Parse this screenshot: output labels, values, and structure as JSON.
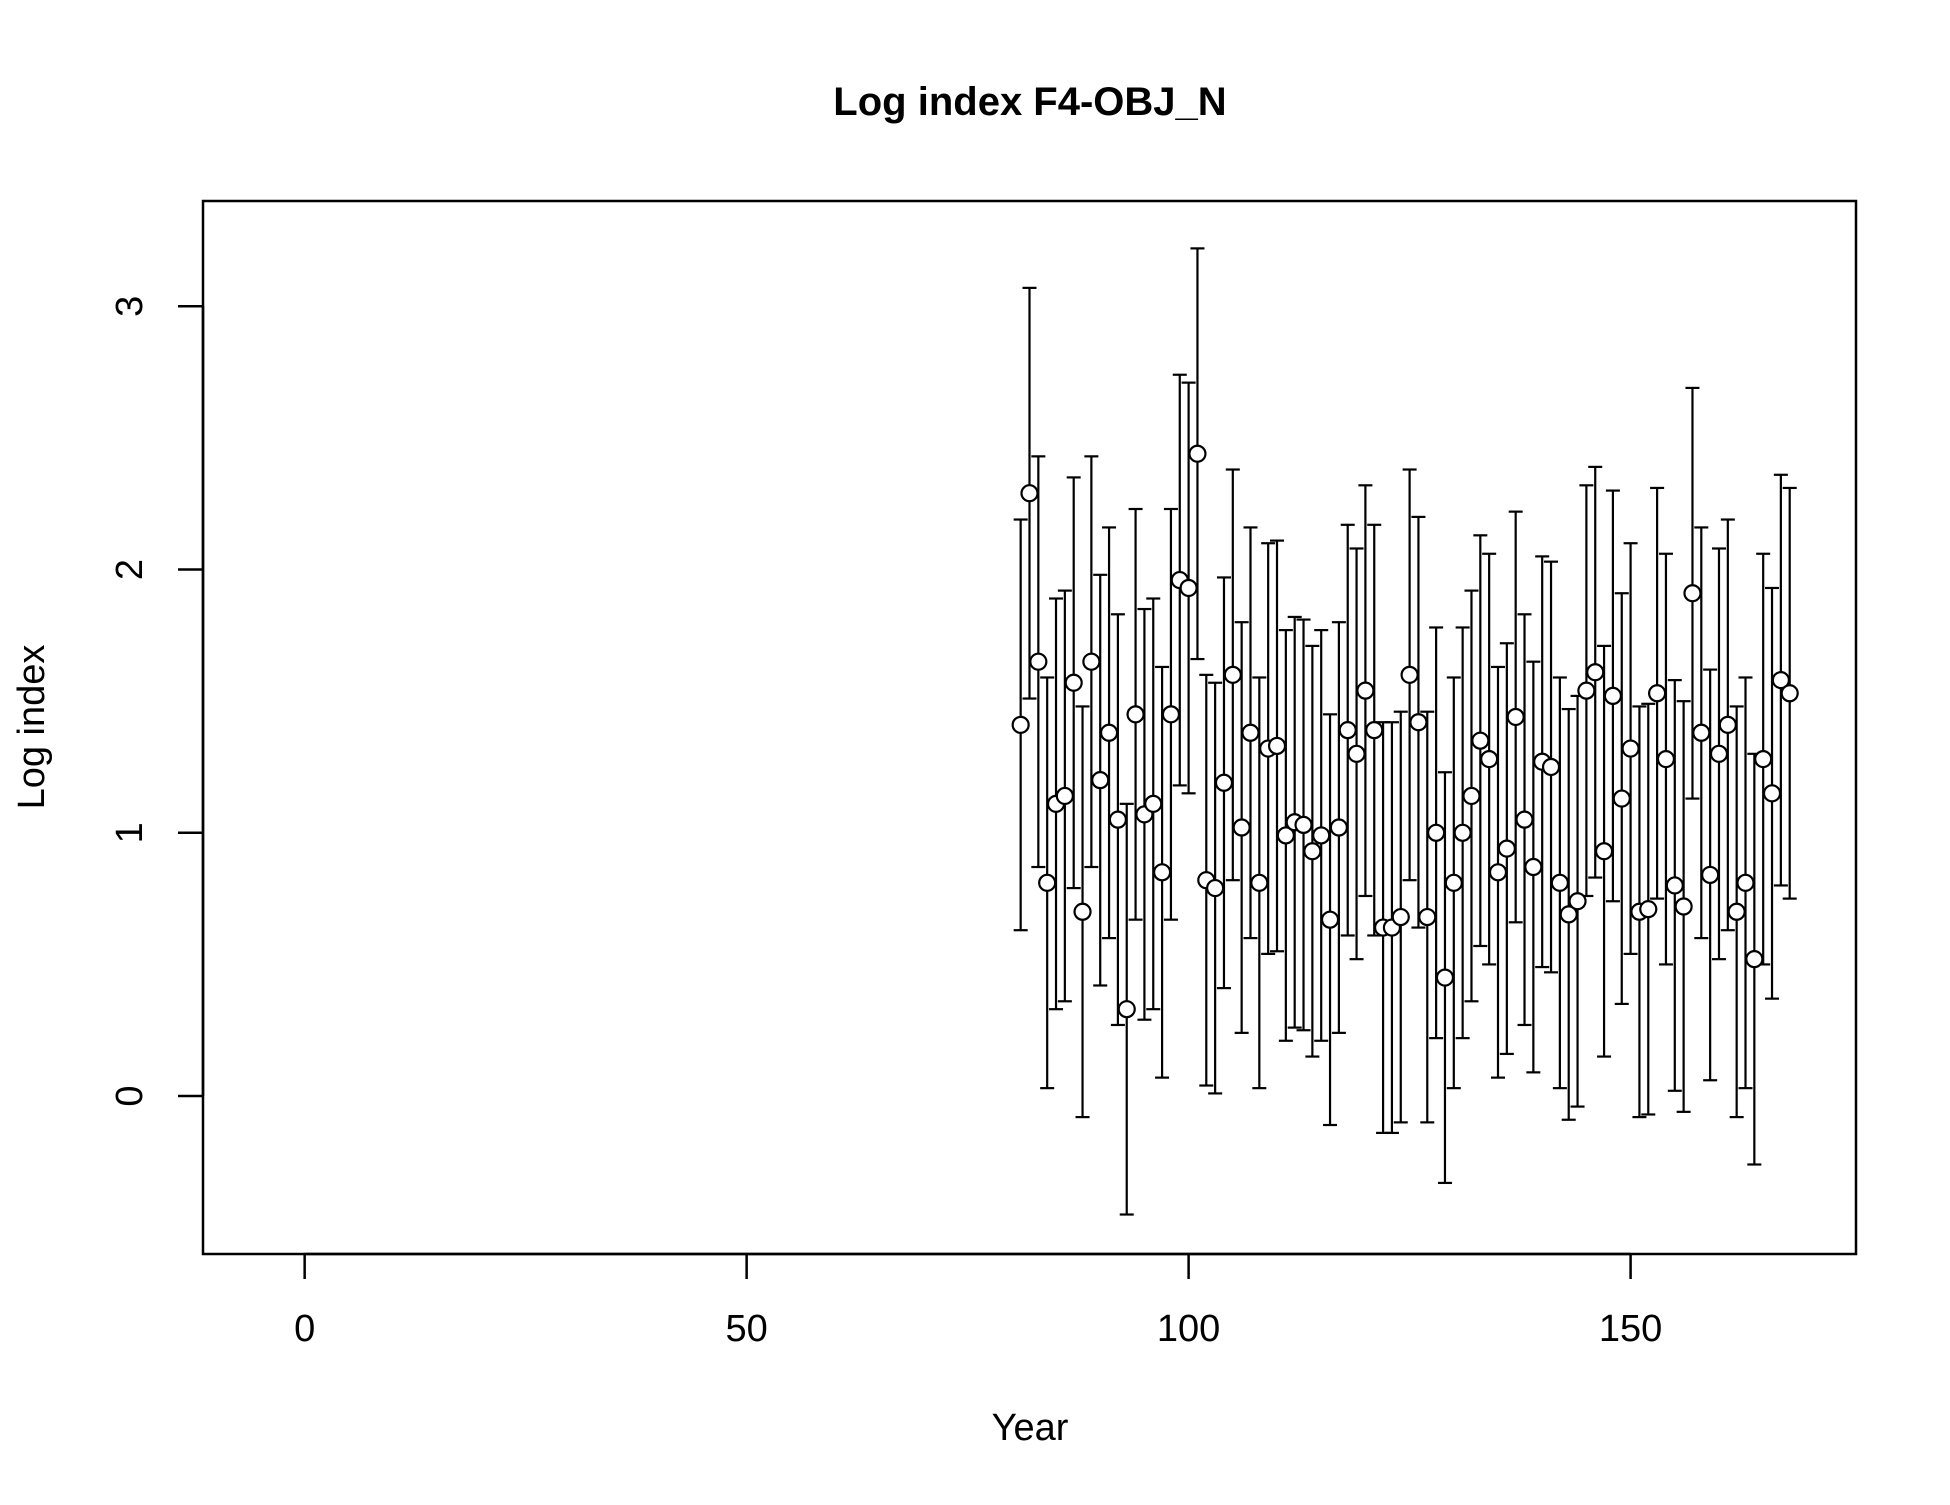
{
  "chart_data": {
    "type": "scatter",
    "title": "Log index F4-OBJ_N",
    "xlabel": "Year",
    "ylabel": "Log index",
    "xlim": [
      -11.5,
      175.5
    ],
    "ylim": [
      -0.6,
      3.4
    ],
    "xticks": [
      0,
      50,
      100,
      150
    ],
    "yticks": [
      0,
      1,
      2,
      3
    ],
    "grid": false,
    "legend": "none",
    "colors": {
      "marker_fill": "#ffffff",
      "marker_stroke": "#000000",
      "error_bar": "#000000"
    },
    "series": [
      {
        "x": [
          81,
          82,
          83,
          84,
          85,
          86,
          87,
          88,
          89,
          90,
          91,
          92,
          93,
          94,
          95,
          96,
          97,
          98,
          99,
          100,
          101,
          102,
          103,
          104,
          105,
          106,
          107,
          108,
          109,
          110,
          111,
          112,
          113,
          114,
          115,
          116,
          117,
          118,
          119,
          120,
          121,
          122,
          123,
          124,
          125,
          126,
          127,
          128,
          129,
          130,
          131,
          132,
          133,
          134,
          135,
          136,
          137,
          138,
          139,
          140,
          141,
          142,
          143,
          144,
          145,
          146,
          147,
          148,
          149,
          150,
          151,
          152,
          153,
          154,
          155,
          156,
          157,
          158,
          159,
          160,
          161,
          162,
          163,
          164,
          165,
          166,
          167,
          168
        ],
        "y": [
          1.41,
          2.29,
          1.65,
          0.81,
          1.11,
          1.14,
          1.57,
          0.7,
          1.65,
          1.2,
          1.38,
          1.05,
          0.33,
          1.45,
          1.07,
          1.11,
          0.85,
          1.45,
          1.96,
          1.93,
          2.44,
          0.82,
          0.79,
          1.19,
          1.6,
          1.02,
          1.38,
          0.81,
          1.32,
          1.33,
          0.99,
          1.04,
          1.03,
          0.93,
          0.99,
          0.67,
          1.02,
          1.39,
          1.3,
          1.54,
          1.39,
          0.64,
          0.64,
          0.68,
          1.6,
          1.42,
          0.68,
          1.0,
          0.45,
          0.81,
          1.0,
          1.14,
          1.35,
          1.28,
          0.85,
          0.94,
          1.44,
          1.05,
          0.87,
          1.27,
          1.25,
          0.81,
          0.69,
          0.74,
          1.54,
          1.61,
          0.93,
          1.52,
          1.13,
          1.32,
          0.7,
          0.71,
          1.53,
          1.28,
          0.8,
          0.72,
          1.91,
          1.38,
          0.84,
          1.3,
          1.41,
          0.7,
          0.81,
          0.52,
          1.28,
          1.15,
          1.58,
          1.53
        ],
        "lower": [
          0.63,
          1.51,
          0.87,
          0.03,
          0.33,
          0.36,
          0.79,
          -0.08,
          0.87,
          0.42,
          0.6,
          0.27,
          -0.45,
          0.67,
          0.29,
          0.33,
          0.07,
          0.67,
          1.18,
          1.15,
          1.66,
          0.04,
          0.01,
          0.41,
          0.82,
          0.24,
          0.6,
          0.03,
          0.54,
          0.55,
          0.21,
          0.26,
          0.25,
          0.15,
          0.21,
          -0.11,
          0.24,
          0.61,
          0.52,
          0.76,
          0.61,
          -0.14,
          -0.14,
          -0.1,
          0.82,
          0.64,
          -0.1,
          0.22,
          -0.33,
          0.03,
          0.22,
          0.36,
          0.57,
          0.5,
          0.07,
          0.16,
          0.66,
          0.27,
          0.09,
          0.49,
          0.47,
          0.03,
          -0.09,
          -0.04,
          0.76,
          0.83,
          0.15,
          0.74,
          0.35,
          0.54,
          -0.08,
          -0.07,
          0.75,
          0.5,
          0.02,
          -0.06,
          1.13,
          0.6,
          0.06,
          0.52,
          0.63,
          -0.08,
          0.03,
          -0.26,
          0.5,
          0.37,
          0.8,
          0.75
        ],
        "upper": [
          2.19,
          3.07,
          2.43,
          1.59,
          1.89,
          1.92,
          2.35,
          1.48,
          2.43,
          1.98,
          2.16,
          1.83,
          1.11,
          2.23,
          1.85,
          1.89,
          1.63,
          2.23,
          2.74,
          2.71,
          3.22,
          1.6,
          1.57,
          1.97,
          2.38,
          1.8,
          2.16,
          1.59,
          2.1,
          2.11,
          1.77,
          1.82,
          1.81,
          1.71,
          1.77,
          1.45,
          1.8,
          2.17,
          2.08,
          2.32,
          2.17,
          1.42,
          1.42,
          1.46,
          2.38,
          2.2,
          1.46,
          1.78,
          1.23,
          1.59,
          1.78,
          1.92,
          2.13,
          2.06,
          1.63,
          1.72,
          2.22,
          1.83,
          1.65,
          2.05,
          2.03,
          1.59,
          1.47,
          1.52,
          2.32,
          2.39,
          1.71,
          2.3,
          1.91,
          2.1,
          1.48,
          1.49,
          2.31,
          2.06,
          1.58,
          1.5,
          2.69,
          2.16,
          1.62,
          2.08,
          2.19,
          1.48,
          1.59,
          1.3,
          2.06,
          1.93,
          2.36,
          2.31
        ]
      }
    ]
  }
}
